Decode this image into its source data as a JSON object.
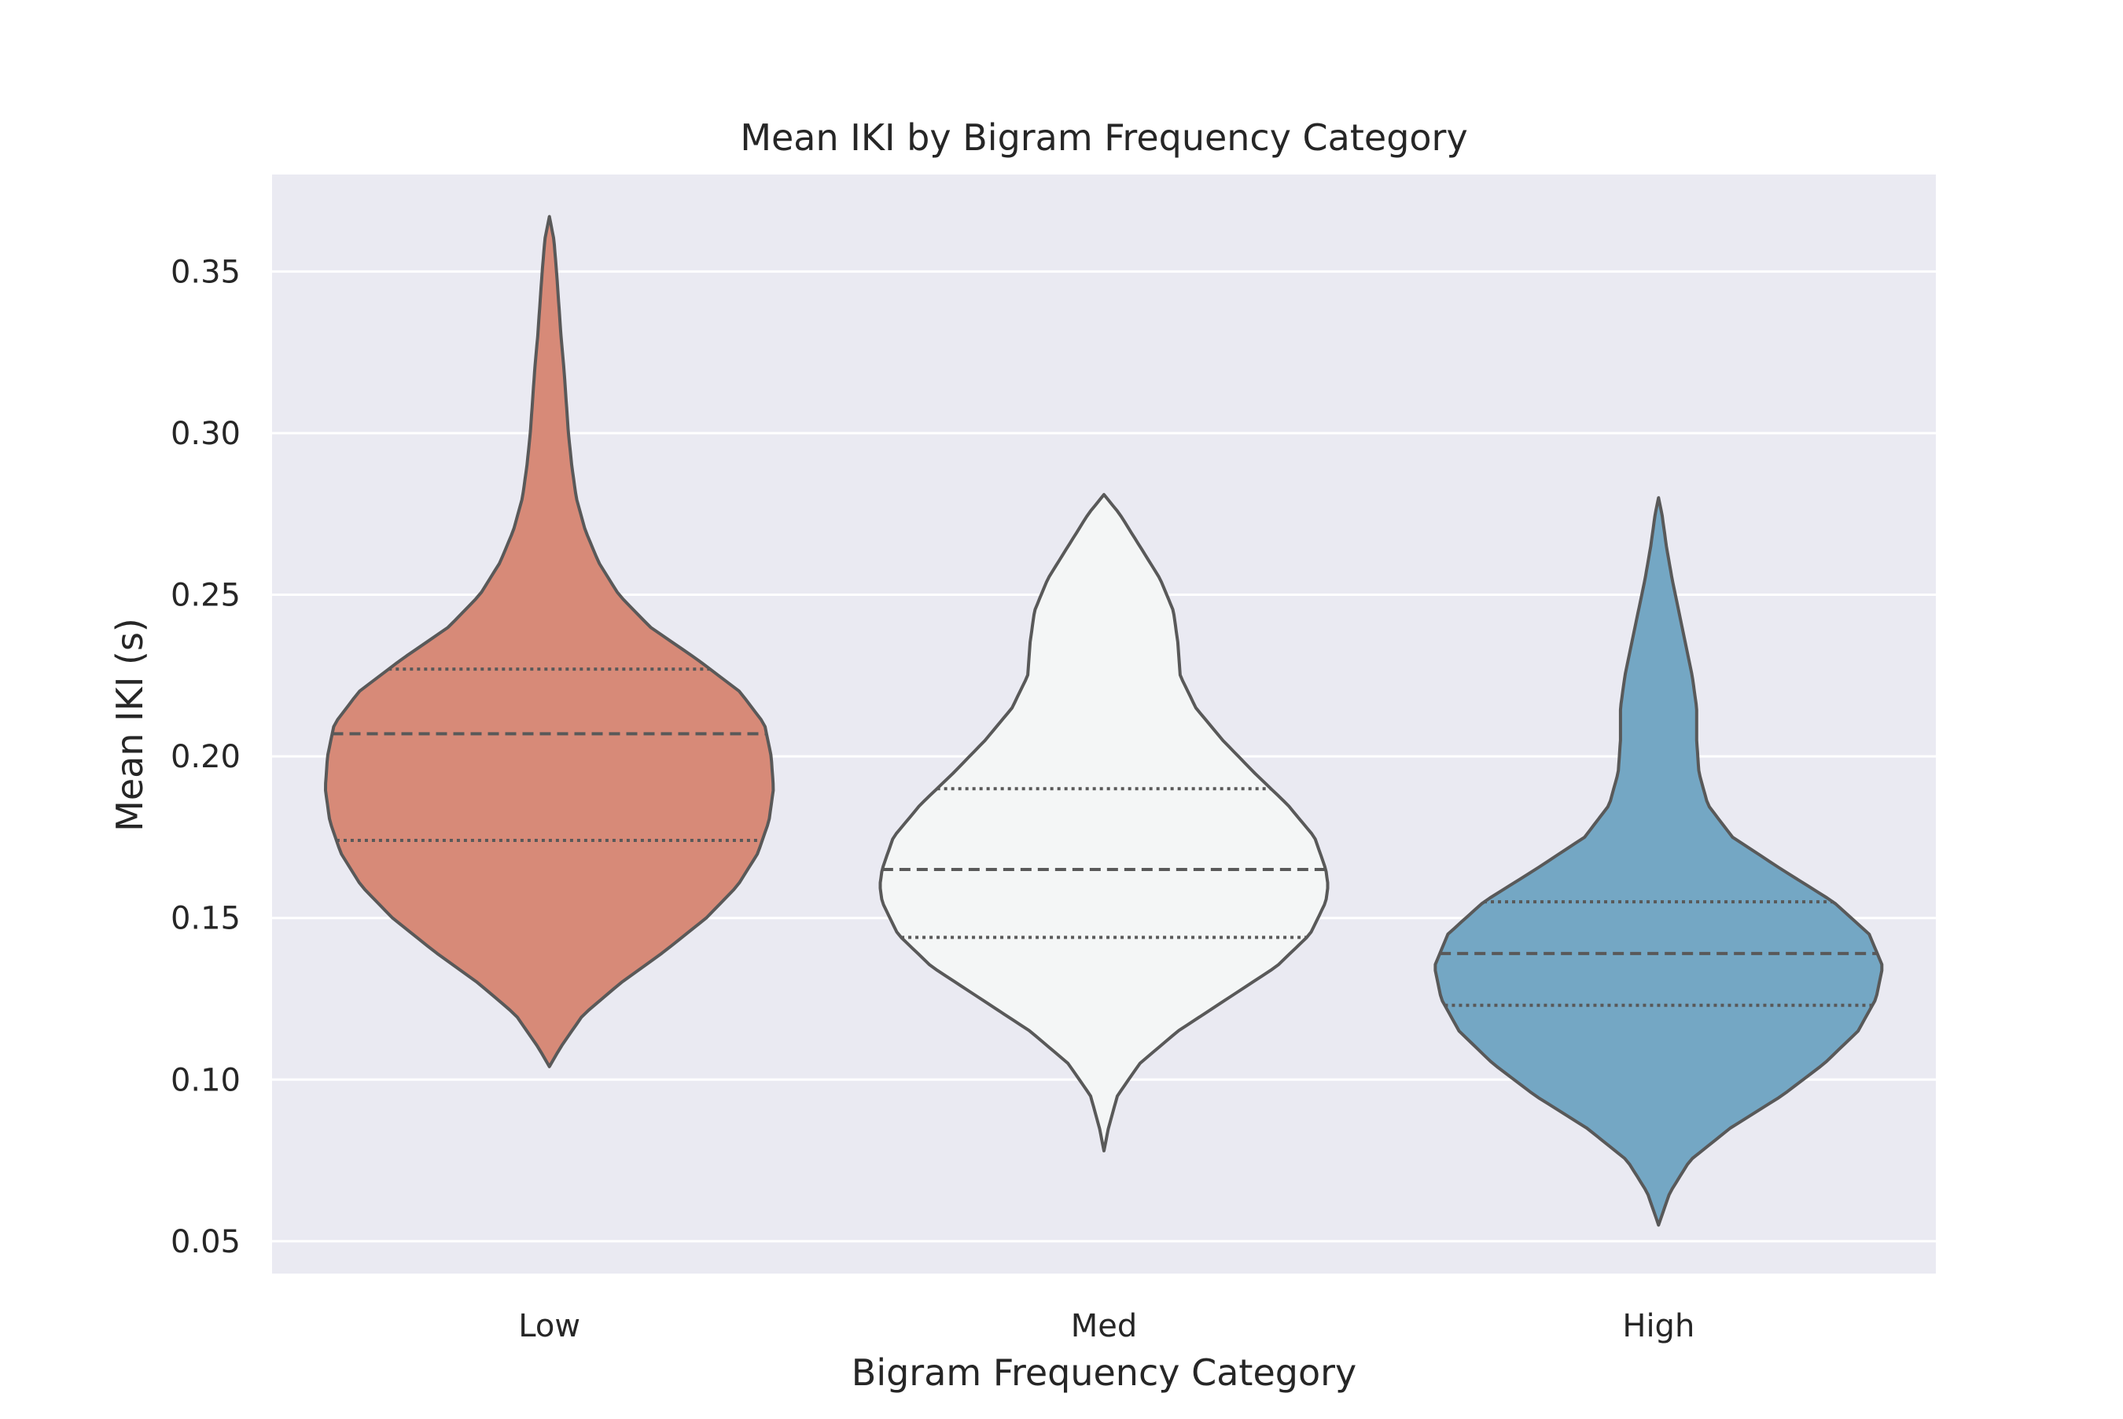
{
  "chart_data": {
    "type": "violin",
    "title": "Mean IKI by Bigram Frequency Category",
    "xlabel": "Bigram Frequency Category",
    "ylabel": "Mean IKI (s)",
    "categories": [
      "Low",
      "Med",
      "High"
    ],
    "ylim": [
      0.04,
      0.38
    ],
    "yticks": [
      0.05,
      0.1,
      0.15,
      0.2,
      0.25,
      0.3,
      0.35
    ],
    "ytick_labels": [
      "0.05",
      "0.10",
      "0.15",
      "0.20",
      "0.25",
      "0.30",
      "0.35"
    ],
    "grid": true,
    "inner": "quartile",
    "colors": {
      "Low": "#d78a78",
      "Med": "#f4f6f6",
      "High": "#74a7c4",
      "outline": "#595959",
      "plot_background": "#eaeaf2",
      "grid": "#ffffff"
    },
    "violins": [
      {
        "category": "Low",
        "min": 0.104,
        "q1": 0.174,
        "median": 0.207,
        "q3": 0.227,
        "max": 0.367,
        "profile": [
          [
            0.104,
            0.0
          ],
          [
            0.11,
            0.05
          ],
          [
            0.12,
            0.15
          ],
          [
            0.13,
            0.32
          ],
          [
            0.14,
            0.52
          ],
          [
            0.15,
            0.7
          ],
          [
            0.16,
            0.84
          ],
          [
            0.17,
            0.93
          ],
          [
            0.18,
            0.98
          ],
          [
            0.19,
            1.0
          ],
          [
            0.2,
            0.99
          ],
          [
            0.21,
            0.96
          ],
          [
            0.22,
            0.85
          ],
          [
            0.23,
            0.66
          ],
          [
            0.24,
            0.45
          ],
          [
            0.25,
            0.31
          ],
          [
            0.26,
            0.22
          ],
          [
            0.27,
            0.16
          ],
          [
            0.28,
            0.12
          ],
          [
            0.29,
            0.1
          ],
          [
            0.3,
            0.085
          ],
          [
            0.31,
            0.075
          ],
          [
            0.32,
            0.065
          ],
          [
            0.33,
            0.052
          ],
          [
            0.34,
            0.042
          ],
          [
            0.35,
            0.032
          ],
          [
            0.36,
            0.02
          ],
          [
            0.367,
            0.0
          ]
        ]
      },
      {
        "category": "Med",
        "min": 0.078,
        "q1": 0.144,
        "median": 0.165,
        "q3": 0.19,
        "max": 0.281,
        "profile": [
          [
            0.078,
            0.0
          ],
          [
            0.085,
            0.02
          ],
          [
            0.095,
            0.06
          ],
          [
            0.105,
            0.16
          ],
          [
            0.115,
            0.33
          ],
          [
            0.125,
            0.55
          ],
          [
            0.135,
            0.77
          ],
          [
            0.145,
            0.92
          ],
          [
            0.155,
            0.99
          ],
          [
            0.16,
            1.0
          ],
          [
            0.165,
            0.99
          ],
          [
            0.175,
            0.94
          ],
          [
            0.185,
            0.82
          ],
          [
            0.195,
            0.67
          ],
          [
            0.205,
            0.53
          ],
          [
            0.215,
            0.41
          ],
          [
            0.225,
            0.34
          ],
          [
            0.235,
            0.33
          ],
          [
            0.245,
            0.31
          ],
          [
            0.255,
            0.25
          ],
          [
            0.265,
            0.16
          ],
          [
            0.275,
            0.07
          ],
          [
            0.281,
            0.0
          ]
        ]
      },
      {
        "category": "High",
        "min": 0.055,
        "q1": 0.123,
        "median": 0.139,
        "q3": 0.155,
        "max": 0.28,
        "profile": [
          [
            0.055,
            0.0
          ],
          [
            0.065,
            0.05
          ],
          [
            0.075,
            0.14
          ],
          [
            0.085,
            0.32
          ],
          [
            0.095,
            0.55
          ],
          [
            0.105,
            0.74
          ],
          [
            0.115,
            0.89
          ],
          [
            0.125,
            0.97
          ],
          [
            0.135,
            1.0
          ],
          [
            0.145,
            0.94
          ],
          [
            0.155,
            0.78
          ],
          [
            0.165,
            0.55
          ],
          [
            0.175,
            0.33
          ],
          [
            0.185,
            0.22
          ],
          [
            0.195,
            0.18
          ],
          [
            0.205,
            0.17
          ],
          [
            0.215,
            0.17
          ],
          [
            0.225,
            0.15
          ],
          [
            0.235,
            0.12
          ],
          [
            0.245,
            0.09
          ],
          [
            0.255,
            0.06
          ],
          [
            0.265,
            0.035
          ],
          [
            0.275,
            0.015
          ],
          [
            0.28,
            0.0
          ]
        ]
      }
    ]
  }
}
